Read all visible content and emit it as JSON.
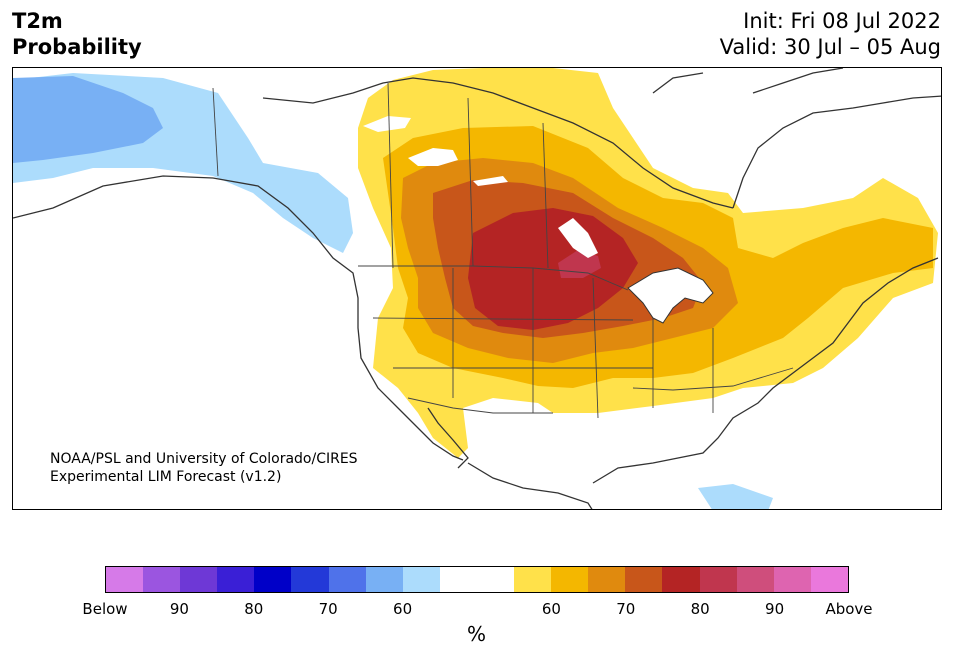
{
  "header": {
    "title_line1": "T2m",
    "title_line2": "Probability",
    "init": "Init: Fri 08 Jul 2022",
    "valid": "Valid: 30 Jul – 05 Aug"
  },
  "credit": {
    "line1": "NOAA/PSL and University of Colorado/CIRES",
    "line2": "Experimental LIM Forecast (v1.2)"
  },
  "colorbar": {
    "colors": [
      "#d67ae8",
      "#9b55e0",
      "#6e38d6",
      "#3a1fd6",
      "#0000c8",
      "#2339d8",
      "#4f72ea",
      "#78b0f4",
      "#acdcfc",
      "#ffffff",
      "#ffffff",
      "#ffe14a",
      "#f4b700",
      "#e08a0e",
      "#c8561a",
      "#b42424",
      "#c0364e",
      "#cf4e7c",
      "#de64b0",
      "#ea78dc"
    ],
    "tick_labels": [
      "Below",
      "90",
      "80",
      "70",
      "60",
      "60",
      "70",
      "80",
      "90",
      "Above"
    ],
    "unit": "%"
  },
  "map": {
    "land_color": "#ffffff",
    "border_color": "#333333"
  }
}
